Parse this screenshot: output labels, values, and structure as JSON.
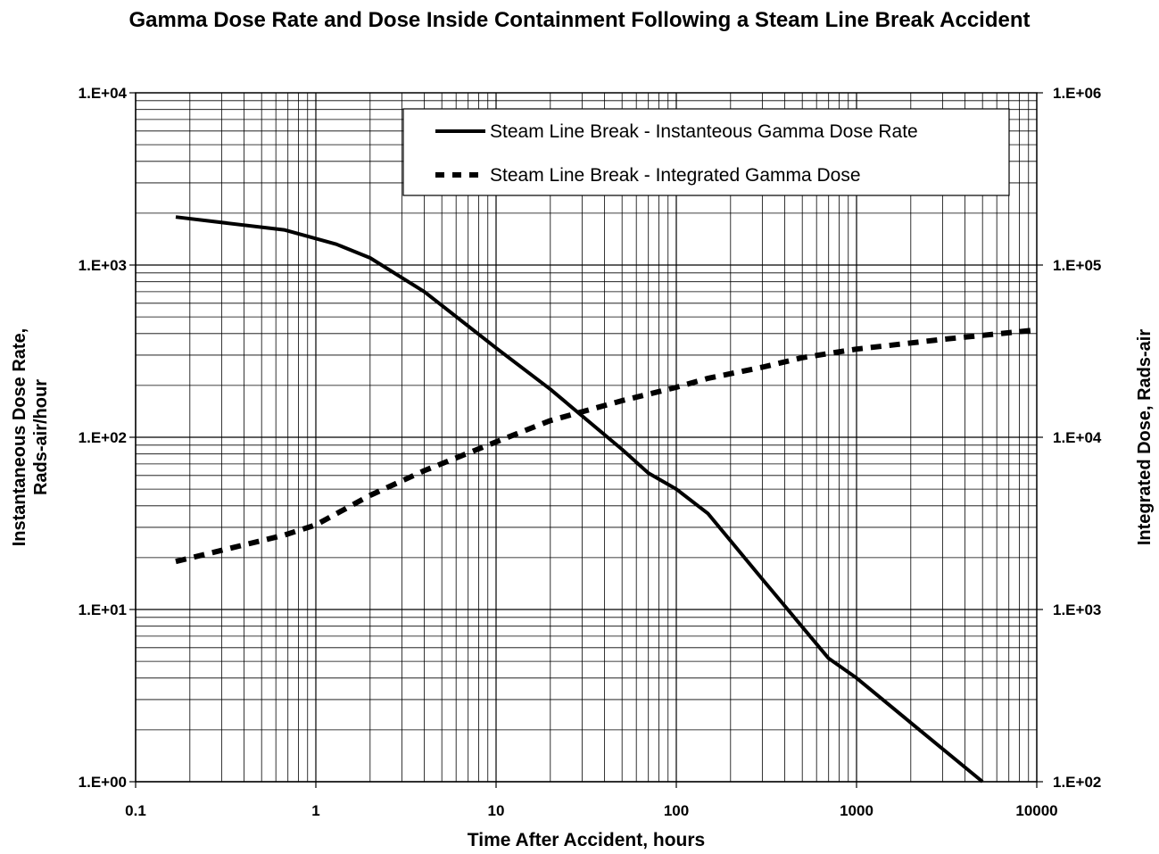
{
  "chart_data": {
    "type": "line",
    "title": "Gamma Dose Rate and Dose Inside Containment Following a Steam Line Break Accident",
    "xlabel": "Time After Accident, hours",
    "ylabel": "Instantaneous Dose Rate,\nRads-air/hour",
    "y2label": "Integrated Dose, Rads-air",
    "xscale": "log",
    "yscale": "log",
    "y2scale": "log",
    "xlim": [
      0.1,
      10000
    ],
    "ylim": [
      1,
      10000
    ],
    "y2lim": [
      100,
      1000000
    ],
    "grid": true,
    "legend_position": "top-right",
    "x_ticks": [
      {
        "value": 0.1,
        "label": "0.1"
      },
      {
        "value": 1,
        "label": "1"
      },
      {
        "value": 10,
        "label": "10"
      },
      {
        "value": 100,
        "label": "100"
      },
      {
        "value": 1000,
        "label": "1000"
      },
      {
        "value": 10000,
        "label": "10000"
      }
    ],
    "y_ticks": [
      {
        "value": 1,
        "label": "1.E+00"
      },
      {
        "value": 10,
        "label": "1.E+01"
      },
      {
        "value": 100,
        "label": "1.E+02"
      },
      {
        "value": 1000,
        "label": "1.E+03"
      },
      {
        "value": 10000,
        "label": "1.E+04"
      }
    ],
    "y2_ticks": [
      {
        "value": 100,
        "label": "1.E+02"
      },
      {
        "value": 1000,
        "label": "1.E+03"
      },
      {
        "value": 10000,
        "label": "1.E+04"
      },
      {
        "value": 100000,
        "label": "1.E+05"
      },
      {
        "value": 1000000,
        "label": "1.E+06"
      }
    ],
    "series": [
      {
        "name": "Steam Line Break - Instanteous Gamma Dose Rate",
        "axis": "left",
        "style": "solid",
        "color": "#000000",
        "points": [
          [
            0.167,
            1900
          ],
          [
            0.667,
            1600
          ],
          [
            1.3,
            1320
          ],
          [
            2,
            1100
          ],
          [
            4,
            700
          ],
          [
            10,
            330
          ],
          [
            20,
            190
          ],
          [
            50,
            85
          ],
          [
            70,
            62
          ],
          [
            100,
            50
          ],
          [
            150,
            36
          ],
          [
            300,
            15
          ],
          [
            700,
            5.2
          ],
          [
            1000,
            4.0
          ],
          [
            2000,
            2.2
          ],
          [
            5000,
            1.0
          ]
        ]
      },
      {
        "name": "Steam Line Break - Integrated Gamma Dose",
        "axis": "right",
        "style": "dashed",
        "color": "#000000",
        "points": [
          [
            0.167,
            1900
          ],
          [
            0.667,
            2700
          ],
          [
            1,
            3100
          ],
          [
            2,
            4600
          ],
          [
            4,
            6400
          ],
          [
            10,
            9400
          ],
          [
            20,
            12500
          ],
          [
            50,
            16300
          ],
          [
            100,
            19500
          ],
          [
            150,
            22000
          ],
          [
            300,
            25500
          ],
          [
            500,
            29000
          ],
          [
            1000,
            32500
          ],
          [
            3000,
            37000
          ],
          [
            10000,
            42000
          ]
        ]
      }
    ]
  }
}
